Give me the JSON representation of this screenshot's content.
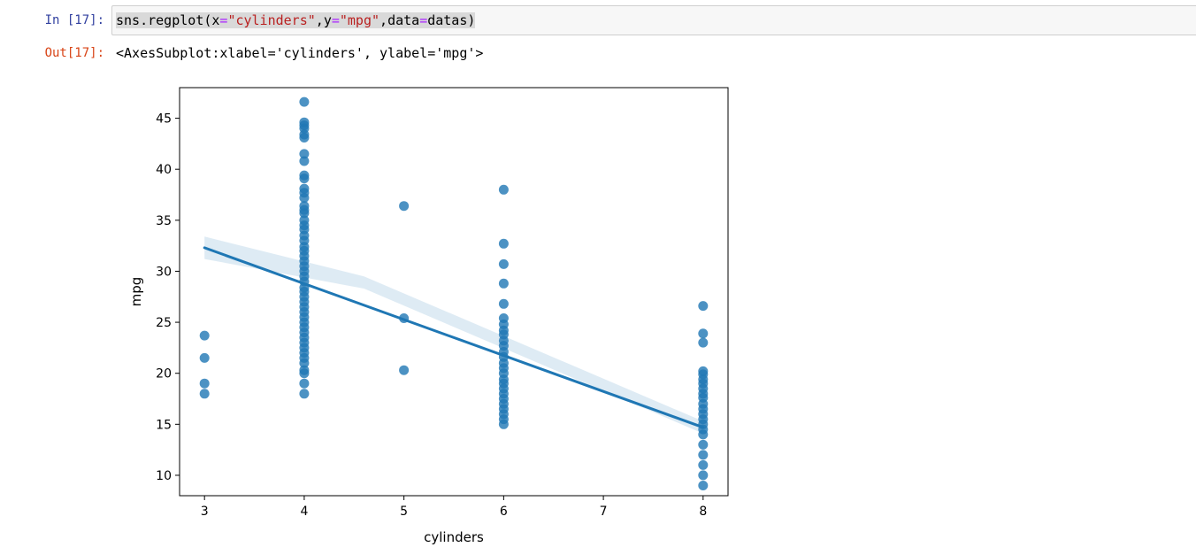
{
  "notebook": {
    "input_prompt": "In [17]:",
    "output_prompt": "Out[17]:",
    "code": {
      "func": "sns.regplot",
      "open": "(",
      "x_kw": "x",
      "eq1": "=",
      "x_val": "\"cylinders\"",
      "comma1": ",",
      "y_kw": "y",
      "eq2": "=",
      "y_val": "\"mpg\"",
      "comma2": ",",
      "data_kw": "data",
      "eq3": "=",
      "data_val": "datas",
      "close": ")"
    },
    "output_repr": "<AxesSubplot:xlabel='cylinders', ylabel='mpg'>"
  },
  "colors": {
    "point": "#1f77b4",
    "line": "#1f77b4",
    "ci_band": "#1f77b4"
  },
  "chart_data": {
    "type": "scatter",
    "xlabel": "cylinders",
    "ylabel": "mpg",
    "xlim": [
      2.75,
      8.25
    ],
    "ylim": [
      8.0,
      48.0
    ],
    "xticks": [
      3,
      4,
      5,
      6,
      7,
      8
    ],
    "yticks": [
      10,
      15,
      20,
      25,
      30,
      35,
      40,
      45
    ],
    "grid": false,
    "legend": "none",
    "regression": {
      "x": [
        3,
        8
      ],
      "y": [
        32.3,
        14.7
      ],
      "ci_upper": [
        33.4,
        15.3
      ],
      "ci_lower": [
        31.2,
        14.1
      ],
      "ci_mid": [
        4.6,
        28.9,
        0.6
      ]
    },
    "points": [
      {
        "x": 3,
        "y": 23.7
      },
      {
        "x": 3,
        "y": 21.5
      },
      {
        "x": 3,
        "y": 19.0
      },
      {
        "x": 3,
        "y": 18.0
      },
      {
        "x": 4,
        "y": 46.6
      },
      {
        "x": 4,
        "y": 44.6
      },
      {
        "x": 4,
        "y": 44.3
      },
      {
        "x": 4,
        "y": 44.0
      },
      {
        "x": 4,
        "y": 43.4
      },
      {
        "x": 4,
        "y": 43.1
      },
      {
        "x": 4,
        "y": 41.5
      },
      {
        "x": 4,
        "y": 40.8
      },
      {
        "x": 4,
        "y": 39.4
      },
      {
        "x": 4,
        "y": 39.1
      },
      {
        "x": 4,
        "y": 38.1
      },
      {
        "x": 4,
        "y": 37.7
      },
      {
        "x": 4,
        "y": 37.2
      },
      {
        "x": 4,
        "y": 36.4
      },
      {
        "x": 4,
        "y": 36.0
      },
      {
        "x": 4,
        "y": 35.7
      },
      {
        "x": 4,
        "y": 35.0
      },
      {
        "x": 4,
        "y": 34.5
      },
      {
        "x": 4,
        "y": 34.1
      },
      {
        "x": 4,
        "y": 33.5
      },
      {
        "x": 4,
        "y": 33.0
      },
      {
        "x": 4,
        "y": 32.4
      },
      {
        "x": 4,
        "y": 32.0
      },
      {
        "x": 4,
        "y": 31.5
      },
      {
        "x": 4,
        "y": 31.0
      },
      {
        "x": 4,
        "y": 30.5
      },
      {
        "x": 4,
        "y": 30.0
      },
      {
        "x": 4,
        "y": 29.5
      },
      {
        "x": 4,
        "y": 29.0
      },
      {
        "x": 4,
        "y": 28.4
      },
      {
        "x": 4,
        "y": 28.0
      },
      {
        "x": 4,
        "y": 27.5
      },
      {
        "x": 4,
        "y": 27.0
      },
      {
        "x": 4,
        "y": 26.5
      },
      {
        "x": 4,
        "y": 26.0
      },
      {
        "x": 4,
        "y": 25.5
      },
      {
        "x": 4,
        "y": 25.0
      },
      {
        "x": 4,
        "y": 24.5
      },
      {
        "x": 4,
        "y": 24.0
      },
      {
        "x": 4,
        "y": 23.5
      },
      {
        "x": 4,
        "y": 23.0
      },
      {
        "x": 4,
        "y": 22.5
      },
      {
        "x": 4,
        "y": 22.0
      },
      {
        "x": 4,
        "y": 21.5
      },
      {
        "x": 4,
        "y": 21.0
      },
      {
        "x": 4,
        "y": 20.3
      },
      {
        "x": 4,
        "y": 20.0
      },
      {
        "x": 4,
        "y": 19.0
      },
      {
        "x": 4,
        "y": 18.0
      },
      {
        "x": 5,
        "y": 36.4
      },
      {
        "x": 5,
        "y": 25.4
      },
      {
        "x": 5,
        "y": 20.3
      },
      {
        "x": 6,
        "y": 38.0
      },
      {
        "x": 6,
        "y": 32.7
      },
      {
        "x": 6,
        "y": 30.7
      },
      {
        "x": 6,
        "y": 28.8
      },
      {
        "x": 6,
        "y": 26.8
      },
      {
        "x": 6,
        "y": 25.4
      },
      {
        "x": 6,
        "y": 24.8
      },
      {
        "x": 6,
        "y": 24.2
      },
      {
        "x": 6,
        "y": 23.8
      },
      {
        "x": 6,
        "y": 23.2
      },
      {
        "x": 6,
        "y": 22.7
      },
      {
        "x": 6,
        "y": 22.1
      },
      {
        "x": 6,
        "y": 21.6
      },
      {
        "x": 6,
        "y": 21.0
      },
      {
        "x": 6,
        "y": 20.5
      },
      {
        "x": 6,
        "y": 20.0
      },
      {
        "x": 6,
        "y": 19.4
      },
      {
        "x": 6,
        "y": 19.0
      },
      {
        "x": 6,
        "y": 18.5
      },
      {
        "x": 6,
        "y": 18.0
      },
      {
        "x": 6,
        "y": 17.5
      },
      {
        "x": 6,
        "y": 17.0
      },
      {
        "x": 6,
        "y": 16.5
      },
      {
        "x": 6,
        "y": 16.0
      },
      {
        "x": 6,
        "y": 15.5
      },
      {
        "x": 6,
        "y": 15.0
      },
      {
        "x": 8,
        "y": 26.6
      },
      {
        "x": 8,
        "y": 23.9
      },
      {
        "x": 8,
        "y": 23.0
      },
      {
        "x": 8,
        "y": 20.2
      },
      {
        "x": 8,
        "y": 19.9
      },
      {
        "x": 8,
        "y": 19.4
      },
      {
        "x": 8,
        "y": 19.0
      },
      {
        "x": 8,
        "y": 18.5
      },
      {
        "x": 8,
        "y": 18.0
      },
      {
        "x": 8,
        "y": 17.6
      },
      {
        "x": 8,
        "y": 17.0
      },
      {
        "x": 8,
        "y": 16.5
      },
      {
        "x": 8,
        "y": 16.0
      },
      {
        "x": 8,
        "y": 15.5
      },
      {
        "x": 8,
        "y": 15.0
      },
      {
        "x": 8,
        "y": 14.5
      },
      {
        "x": 8,
        "y": 14.0
      },
      {
        "x": 8,
        "y": 13.0
      },
      {
        "x": 8,
        "y": 12.0
      },
      {
        "x": 8,
        "y": 11.0
      },
      {
        "x": 8,
        "y": 10.0
      },
      {
        "x": 8,
        "y": 9.0
      }
    ]
  }
}
